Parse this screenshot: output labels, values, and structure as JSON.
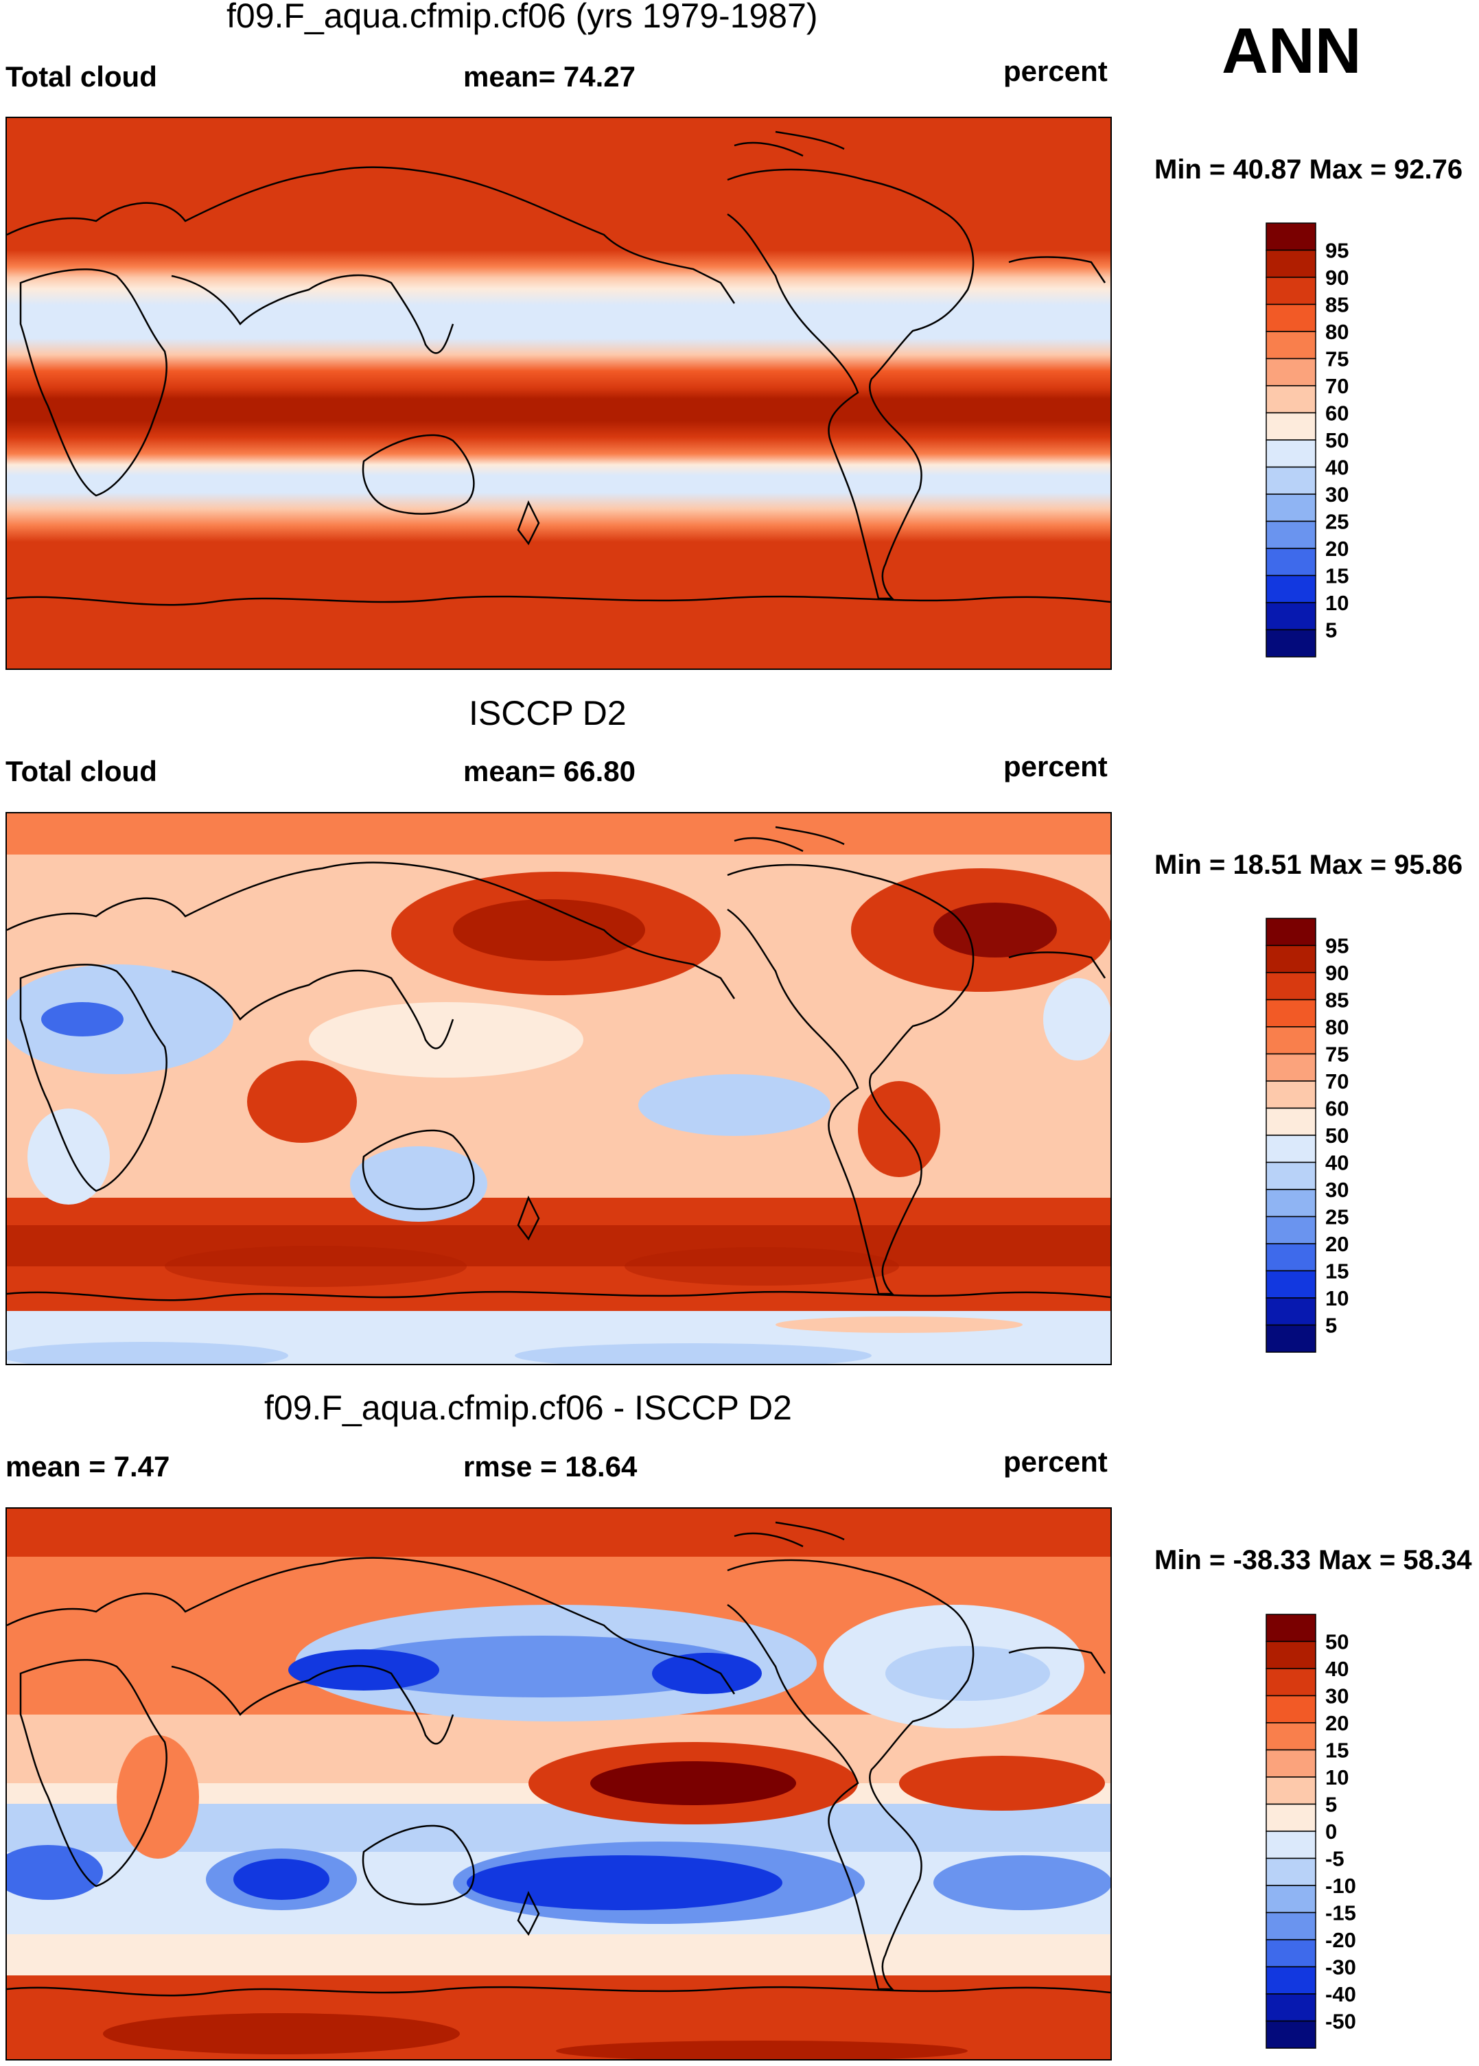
{
  "corner_label": "ANN",
  "panels": [
    {
      "title": "f09.F_aqua.cfmip.cf06 (yrs 1979-1987)",
      "left": "Total cloud",
      "center": "mean=  74.27",
      "units": "percent",
      "minmax": "Min =  40.87 Max =  92.76",
      "colorbar_labels": [
        "95",
        "90",
        "85",
        "80",
        "75",
        "70",
        "60",
        "50",
        "40",
        "30",
        "25",
        "20",
        "15",
        "10",
        "5"
      ]
    },
    {
      "title": "ISCCP D2",
      "left": "Total cloud",
      "center": "mean=  66.80",
      "units": "percent",
      "minmax": "Min =  18.51 Max =  95.86",
      "colorbar_labels": [
        "95",
        "90",
        "85",
        "80",
        "75",
        "70",
        "60",
        "50",
        "40",
        "30",
        "25",
        "20",
        "15",
        "10",
        "5"
      ]
    },
    {
      "title": "f09.F_aqua.cfmip.cf06 - ISCCP D2",
      "left": "mean =   7.47",
      "center": "rmse =  18.64",
      "units": "percent",
      "minmax": "Min = -38.33 Max =  58.34",
      "colorbar_labels": [
        "50",
        "40",
        "30",
        "20",
        "15",
        "10",
        "5",
        "0",
        "-5",
        "-10",
        "-15",
        "-20",
        "-30",
        "-40",
        "-50"
      ]
    }
  ],
  "colors": {
    "scale": [
      "#7a0000",
      "#b01e00",
      "#d83a10",
      "#f25a26",
      "#f97f4c",
      "#fba37c",
      "#fdc9ab",
      "#fdebdc",
      "#dbe9fb",
      "#b8d2f8",
      "#8fb4f3",
      "#6a94ef",
      "#3e6aeb",
      "#1238e0",
      "#0719b0",
      "#030a7c"
    ]
  }
}
